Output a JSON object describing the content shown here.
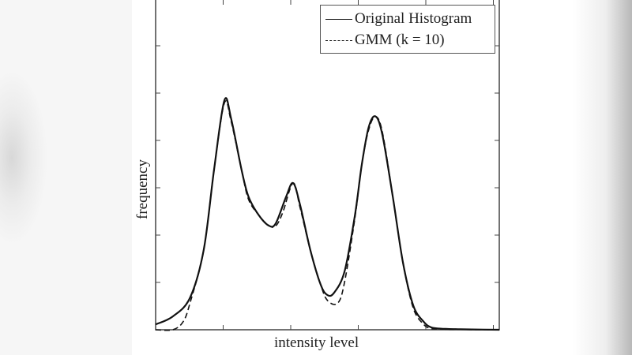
{
  "chart_data": {
    "type": "line",
    "title": "",
    "xlabel": "intensity level",
    "ylabel": "frequency",
    "x_ticks_labeled": false,
    "y_ticks_labeled": false,
    "x_ticks": 5,
    "y_ticks": 6,
    "grid": false,
    "legend_position": "upper right",
    "xlim": [
      0,
      1
    ],
    "ylim": [
      0,
      1
    ],
    "series": [
      {
        "name": "Original Histogram",
        "style": "solid",
        "x": [
          0.0,
          0.05,
          0.1,
          0.14,
          0.17,
          0.2,
          0.22,
          0.25,
          0.27,
          0.3,
          0.33,
          0.35,
          0.38,
          0.4,
          0.42,
          0.45,
          0.48,
          0.5,
          0.52,
          0.55,
          0.58,
          0.6,
          0.62,
          0.64,
          0.66,
          0.69,
          0.72,
          0.75,
          0.78,
          0.8,
          0.82,
          0.85,
          0.88,
          0.92,
          1.0
        ],
        "values": [
          0.02,
          0.05,
          0.12,
          0.3,
          0.6,
          0.86,
          0.79,
          0.6,
          0.5,
          0.43,
          0.39,
          0.4,
          0.5,
          0.55,
          0.47,
          0.3,
          0.17,
          0.13,
          0.14,
          0.22,
          0.43,
          0.62,
          0.76,
          0.8,
          0.73,
          0.5,
          0.25,
          0.09,
          0.03,
          0.01,
          0.005,
          0.003,
          0.002,
          0.001,
          0.0
        ]
      },
      {
        "name": "GMM (k = 10)",
        "style": "dashed",
        "x": [
          0.0,
          0.05,
          0.08,
          0.1,
          0.14,
          0.17,
          0.2,
          0.22,
          0.25,
          0.27,
          0.3,
          0.33,
          0.35,
          0.37,
          0.4,
          0.42,
          0.45,
          0.48,
          0.5,
          0.53,
          0.55,
          0.58,
          0.6,
          0.62,
          0.64,
          0.66,
          0.69,
          0.72,
          0.75,
          0.78,
          0.8,
          0.82,
          0.85,
          0.88,
          1.0
        ],
        "values": [
          0.0,
          0.0,
          0.03,
          0.1,
          0.3,
          0.6,
          0.85,
          0.78,
          0.6,
          0.49,
          0.43,
          0.39,
          0.39,
          0.44,
          0.55,
          0.46,
          0.3,
          0.17,
          0.11,
          0.1,
          0.18,
          0.42,
          0.62,
          0.75,
          0.8,
          0.74,
          0.5,
          0.25,
          0.08,
          0.02,
          0.005,
          0.003,
          0.002,
          0.001,
          0.0
        ]
      }
    ]
  },
  "figure": {
    "xlabel": "intensity level",
    "ylabel": "frequency",
    "legend": [
      {
        "label": "Original Histogram",
        "style": "solid"
      },
      {
        "label": "GMM (k = 10)",
        "style": "dashed"
      }
    ]
  }
}
